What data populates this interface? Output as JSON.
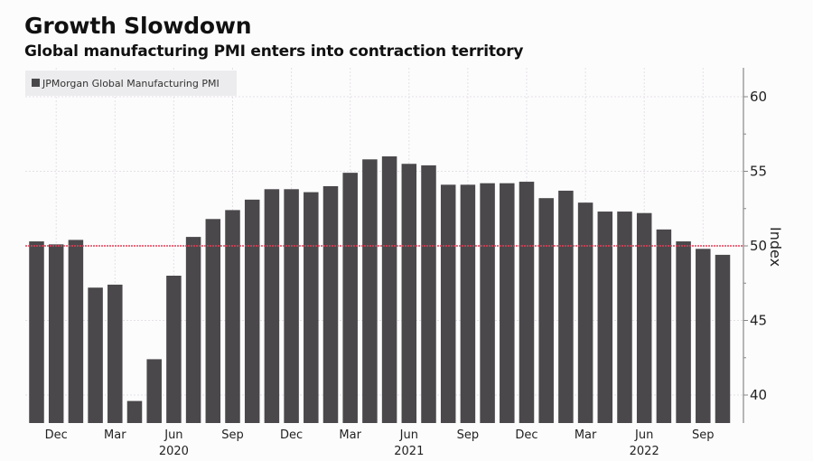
{
  "header": {
    "title": "Growth Slowdown",
    "subtitle": "Global manufacturing PMI enters into contraction territory"
  },
  "colors": {
    "bar": "#4a484a",
    "threshold_line": "#e0405a",
    "grid": "#e4e0e6",
    "legend_bg": "#ececee"
  },
  "chart_data": {
    "type": "bar",
    "title": "Growth Slowdown",
    "subtitle": "Global manufacturing PMI enters into contraction territory",
    "xlabel": "",
    "ylabel": "Index",
    "y_axis_side": "right",
    "ylim": [
      38.1,
      62
    ],
    "yticks": [
      40,
      45,
      50,
      55,
      60
    ],
    "grid": true,
    "legend": {
      "placement": "top-left",
      "entries": [
        "JPMorgan Global Manufacturing PMI"
      ]
    },
    "reference_line": {
      "y": 50,
      "style": "dotted",
      "color": "#e0405a"
    },
    "categories": [
      "Nov 2019",
      "Dec 2019",
      "Jan 2020",
      "Feb 2020",
      "Mar 2020",
      "Apr 2020",
      "May 2020",
      "Jun 2020",
      "Jul 2020",
      "Aug 2020",
      "Sep 2020",
      "Oct 2020",
      "Nov 2020",
      "Dec 2020",
      "Jan 2021",
      "Feb 2021",
      "Mar 2021",
      "Apr 2021",
      "May 2021",
      "Jun 2021",
      "Jul 2021",
      "Aug 2021",
      "Sep 2021",
      "Oct 2021",
      "Nov 2021",
      "Dec 2021",
      "Jan 2022",
      "Feb 2022",
      "Mar 2022",
      "Apr 2022",
      "May 2022",
      "Jun 2022",
      "Jul 2022",
      "Aug 2022",
      "Sep 2022",
      "Oct 2022"
    ],
    "series": [
      {
        "name": "JPMorgan Global Manufacturing PMI",
        "values": [
          50.3,
          50.1,
          50.4,
          47.2,
          47.4,
          39.6,
          42.4,
          48.0,
          50.6,
          51.8,
          52.4,
          53.1,
          53.8,
          53.8,
          53.6,
          54.0,
          54.9,
          55.8,
          56.0,
          55.5,
          55.4,
          54.1,
          54.1,
          54.2,
          54.2,
          54.3,
          53.2,
          53.7,
          52.9,
          52.3,
          52.3,
          52.2,
          51.1,
          50.3,
          49.8,
          49.4
        ]
      }
    ],
    "xtick_labels": [
      {
        "index": 1,
        "month": "Dec",
        "year": ""
      },
      {
        "index": 4,
        "month": "Mar",
        "year": ""
      },
      {
        "index": 7,
        "month": "Jun",
        "year": "2020"
      },
      {
        "index": 10,
        "month": "Sep",
        "year": ""
      },
      {
        "index": 13,
        "month": "Dec",
        "year": ""
      },
      {
        "index": 16,
        "month": "Mar",
        "year": ""
      },
      {
        "index": 19,
        "month": "Jun",
        "year": "2021"
      },
      {
        "index": 22,
        "month": "Sep",
        "year": ""
      },
      {
        "index": 25,
        "month": "Dec",
        "year": ""
      },
      {
        "index": 28,
        "month": "Mar",
        "year": ""
      },
      {
        "index": 31,
        "month": "Jun",
        "year": "2022"
      },
      {
        "index": 34,
        "month": "Sep",
        "year": ""
      }
    ]
  }
}
